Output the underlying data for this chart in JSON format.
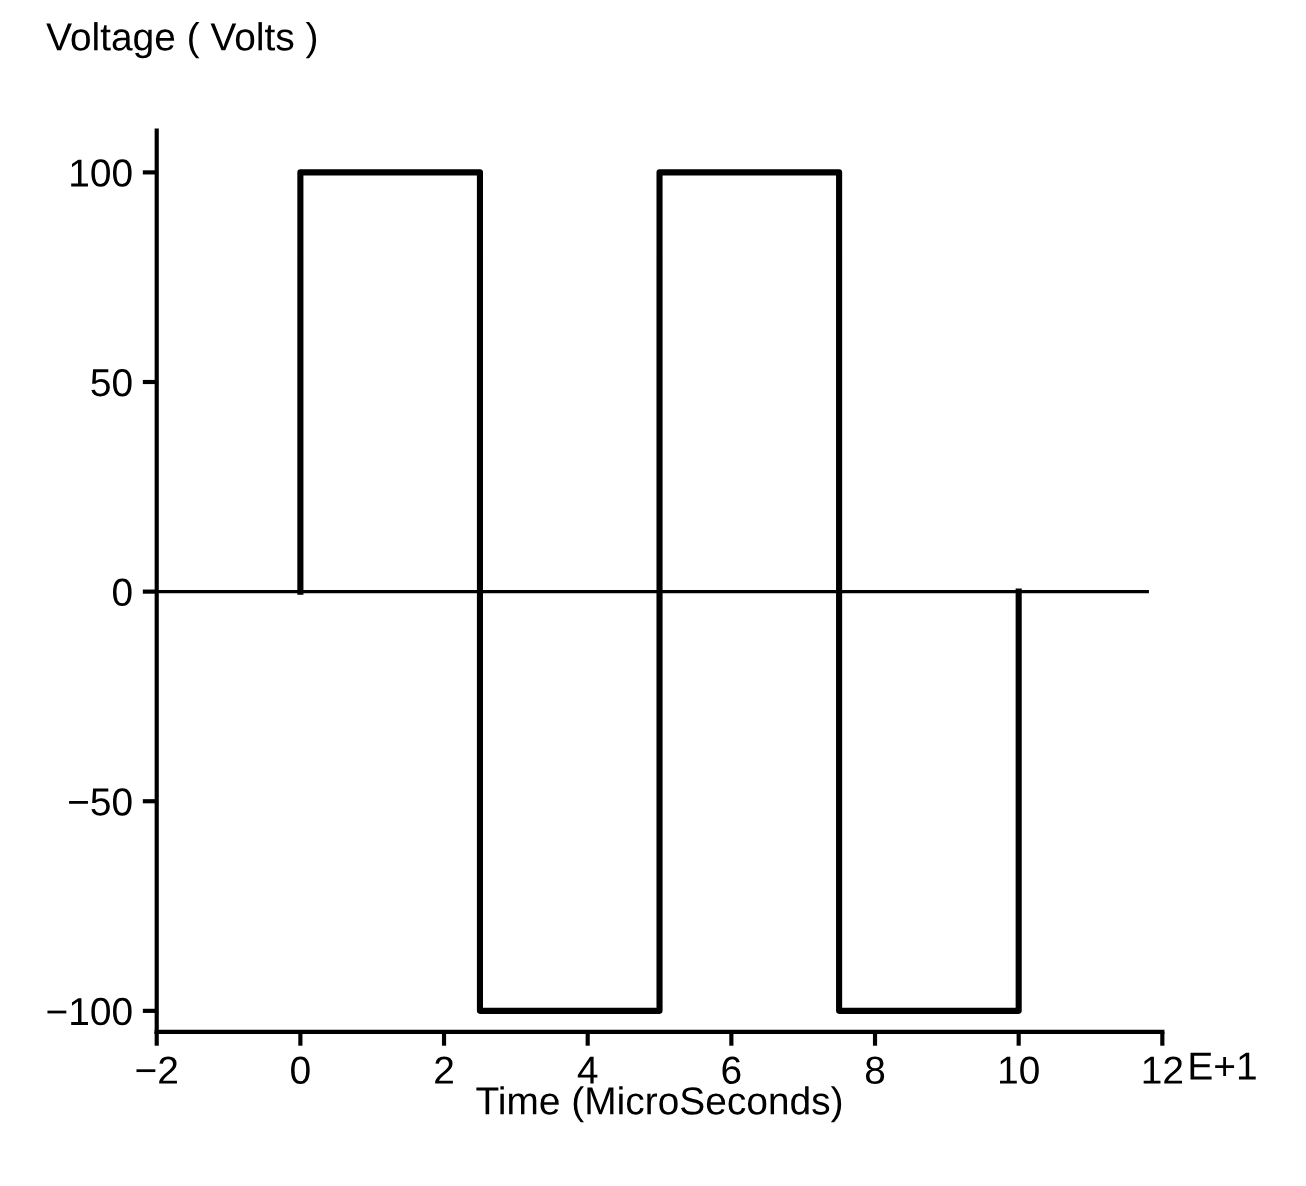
{
  "chart_data": {
    "type": "line",
    "xlabel": "Time (MicroSeconds)",
    "ylabel": "Voltage ( Volts )",
    "x": [
      0,
      0,
      2.5,
      2.5,
      5,
      5,
      7.5,
      7.5,
      10,
      10
    ],
    "series": [
      {
        "color": "#000000",
        "values": [
          0,
          100,
          100,
          -100,
          -100,
          100,
          100,
          -100,
          -100,
          0
        ]
      }
    ],
    "xlim": [
      -2,
      12
    ],
    "xticks": [
      -2,
      0,
      2,
      4,
      6,
      8,
      10,
      12
    ],
    "annotations": [
      "E+1"
    ],
    "ylim": [
      -105,
      110
    ],
    "yticks": [
      -100,
      -50,
      0,
      50,
      100
    ],
    "ref_lines": [
      {
        "axis": "y",
        "value": 0,
        "color": "#000000"
      }
    ],
    "grid": false,
    "legend": false,
    "marker": "none",
    "line_style": "solid"
  }
}
